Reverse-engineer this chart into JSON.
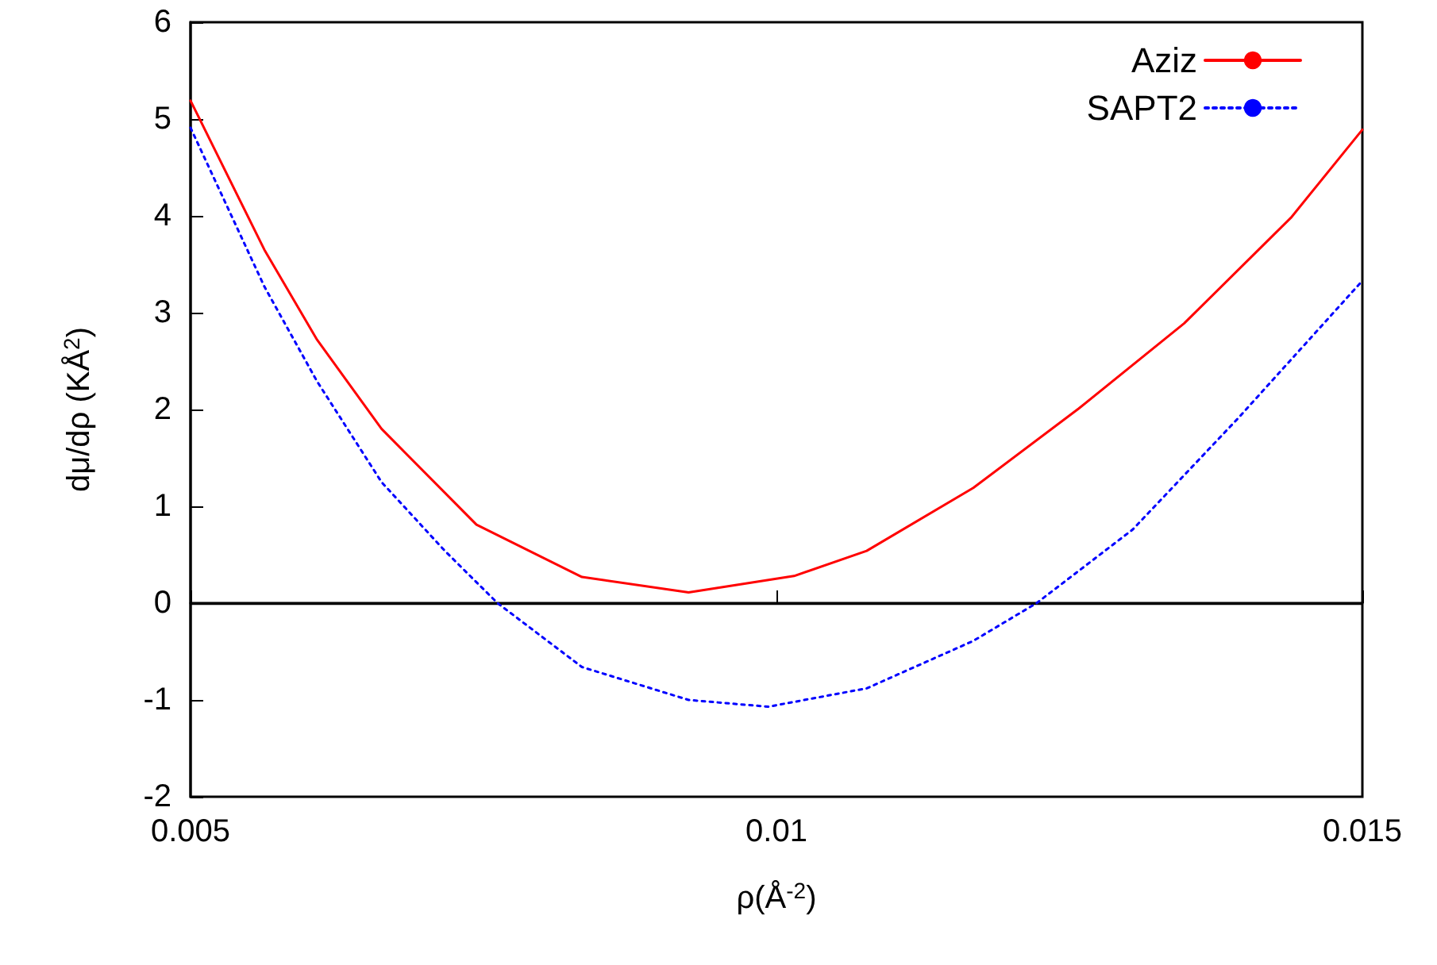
{
  "chart_data": {
    "type": "line",
    "xlabel": "ρ(Å$^{-2}$)",
    "ylabel": "dμ/dρ (KÅ$^{2}$)",
    "xlim": [
      0.005,
      0.015
    ],
    "xticks": [
      0.005,
      0.01,
      0.015
    ],
    "ylim": [
      -2,
      6
    ],
    "yticks": [
      -2,
      -1,
      0,
      1,
      2,
      3,
      4,
      5,
      6
    ],
    "grid": false,
    "legend": "top right",
    "marker": "none",
    "ref_lines": [
      {
        "axis": "y",
        "value": 0,
        "color": "#000000"
      }
    ],
    "series": [
      {
        "name": "Aziz",
        "color": "#ff0000",
        "line_style": "solid",
        "x": [
          0.005,
          0.00563,
          0.00608,
          0.00663,
          0.00744,
          0.00834,
          0.00925,
          0.01015,
          0.01077,
          0.01168,
          0.01258,
          0.01348,
          0.01439,
          0.015
        ],
        "values": [
          5.19,
          3.65,
          2.72,
          1.8,
          0.81,
          0.27,
          0.11,
          0.28,
          0.54,
          1.19,
          2.01,
          2.89,
          3.98,
          4.89
        ]
      },
      {
        "name": "SAPT2",
        "color": "#0000ff",
        "line_style": "dotted",
        "x": [
          0.005,
          0.00563,
          0.00608,
          0.00663,
          0.00717,
          0.00762,
          0.00834,
          0.00925,
          0.00993,
          0.01077,
          0.01168,
          0.01222,
          0.01304,
          0.01394,
          0.015
        ],
        "values": [
          4.91,
          3.27,
          2.29,
          1.25,
          0.54,
          0,
          -0.66,
          -1.0,
          -1.07,
          -0.88,
          -0.39,
          0,
          0.76,
          1.91,
          3.33
        ]
      }
    ]
  }
}
